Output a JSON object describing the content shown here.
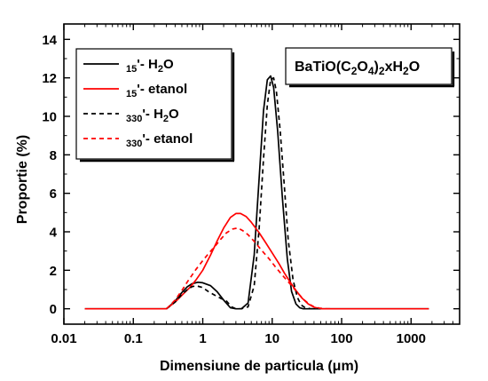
{
  "chart_data": {
    "type": "line",
    "title": "",
    "xlabel": "Dimensiune de particula (μm)",
    "ylabel": "Proportie (%)",
    "xscale": "log",
    "xlim": [
      0.01,
      5000
    ],
    "ylim": [
      -0.8,
      14.8
    ],
    "xticks": [
      0.01,
      0.1,
      1,
      10,
      100,
      1000
    ],
    "xtick_labels": [
      "0.01",
      "0.1",
      "1",
      "10",
      "100",
      "1000"
    ],
    "yticks": [
      0,
      2,
      4,
      6,
      8,
      10,
      12,
      14
    ],
    "ytick_labels": [
      "0",
      "2",
      "4",
      "6",
      "8",
      "10",
      "12",
      "14"
    ],
    "grid": false,
    "legend_position": "top-left",
    "annotation": "BaTiO(C2O4)2xH2O",
    "series": [
      {
        "name": "15'- H2O",
        "color": "#000000",
        "dash": "solid",
        "x": [
          0.02,
          0.3,
          0.4,
          0.5,
          0.6,
          0.7,
          0.85,
          1.0,
          1.3,
          1.6,
          2.0,
          2.5,
          3.0,
          3.6,
          4.5,
          5.5,
          6.5,
          7.5,
          8.5,
          9.5,
          10.5,
          12.0,
          14.0,
          16.5,
          19.0,
          22.0,
          25.0,
          28.0,
          1800
        ],
        "y": [
          0,
          0,
          0.4,
          0.85,
          1.15,
          1.3,
          1.38,
          1.35,
          1.2,
          0.9,
          0.45,
          0.05,
          0,
          0,
          0.3,
          2.8,
          6.8,
          10.3,
          11.9,
          12.1,
          11.5,
          9.2,
          5.8,
          2.6,
          0.9,
          0.25,
          0.05,
          0,
          0
        ]
      },
      {
        "name": "15'- etanol",
        "color": "#ff0000",
        "dash": "solid",
        "x": [
          0.02,
          0.3,
          0.4,
          0.5,
          0.65,
          0.8,
          1.0,
          1.3,
          1.6,
          2.0,
          2.5,
          3.0,
          3.5,
          4.2,
          5.0,
          6.5,
          8.0,
          10.0,
          12.5,
          15.0,
          18.0,
          22.0,
          27.0,
          33.0,
          40.0,
          50.0,
          60.0,
          1800
        ],
        "y": [
          0,
          0,
          0.35,
          0.7,
          1.1,
          1.5,
          2.0,
          2.8,
          3.5,
          4.2,
          4.75,
          4.95,
          4.95,
          4.8,
          4.5,
          3.95,
          3.45,
          2.9,
          2.35,
          1.85,
          1.4,
          0.95,
          0.55,
          0.25,
          0.08,
          0,
          0,
          0
        ]
      },
      {
        "name": "330'- H2O",
        "color": "#000000",
        "dash": "dashed",
        "x": [
          0.3,
          0.4,
          0.5,
          0.6,
          0.7,
          0.8,
          1.0,
          1.2,
          1.5,
          1.8,
          2.2,
          2.6,
          3.0,
          3.6,
          4.5,
          5.5,
          6.5,
          7.5,
          8.5,
          9.5,
          10.5,
          11.5,
          13.0,
          15.0,
          17.0,
          20.0,
          23.0,
          26.0,
          30.0,
          36.0,
          50.0
        ],
        "y": [
          0,
          0.35,
          0.75,
          1.0,
          1.15,
          1.2,
          1.1,
          0.9,
          0.7,
          0.55,
          0.4,
          0.1,
          0,
          0,
          0.1,
          1.2,
          4.2,
          7.8,
          10.6,
          11.9,
          12.0,
          11.3,
          9.3,
          6.3,
          3.6,
          1.5,
          0.6,
          0.2,
          0.05,
          0,
          0
        ]
      },
      {
        "name": "330'- etanol",
        "color": "#ff0000",
        "dash": "dashed",
        "x": [
          0.3,
          0.4,
          0.5,
          0.6,
          0.7,
          0.8,
          1.0,
          1.2,
          1.5,
          1.8,
          2.2,
          2.7,
          3.2,
          3.8,
          4.5,
          5.5,
          7.0,
          9.0,
          11.0,
          14.0,
          18.0,
          23.0,
          28.0,
          34.0,
          40.0,
          48.0,
          60.0,
          75.0
        ],
        "y": [
          0,
          0.45,
          0.95,
          1.4,
          1.75,
          2.05,
          2.5,
          2.85,
          3.25,
          3.6,
          3.95,
          4.15,
          4.2,
          4.05,
          3.85,
          3.5,
          3.05,
          2.6,
          2.2,
          1.75,
          1.3,
          0.85,
          0.5,
          0.25,
          0.1,
          0.03,
          0,
          0
        ]
      }
    ]
  }
}
